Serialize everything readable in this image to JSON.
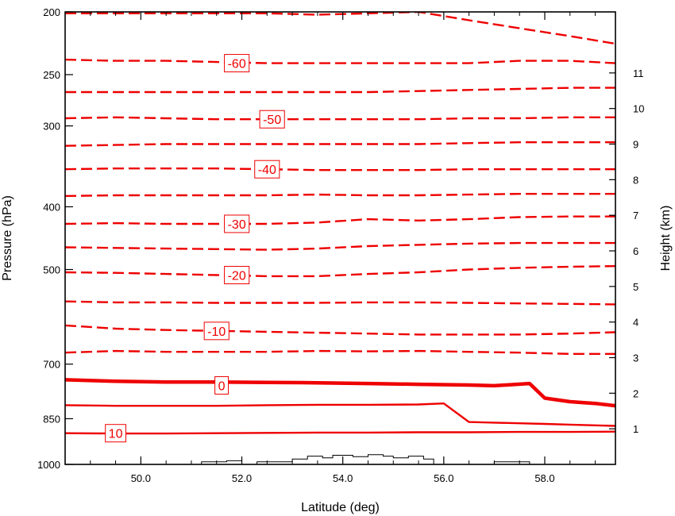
{
  "chart_data": {
    "type": "contour",
    "xlabel": "Latitude (deg)",
    "ylabel": "Pressure (hPa)",
    "y2label": "Height (km)",
    "xlim": [
      48.5,
      59.4
    ],
    "ylim_pressure_hPa": [
      1000,
      200
    ],
    "x_ticks": [
      50,
      52,
      54,
      56,
      58
    ],
    "x_tick_labels": [
      "50.0",
      "52.0",
      "54.0",
      "56.0",
      "58.0"
    ],
    "y_ticks": [
      200,
      250,
      300,
      400,
      500,
      700,
      850,
      1000
    ],
    "y_tick_labels": [
      "200",
      "250",
      "300",
      "400",
      "500",
      "700",
      "850",
      "1000"
    ],
    "y2_ticks_km": [
      1,
      2,
      3,
      4,
      5,
      6,
      7,
      8,
      9,
      10,
      11
    ],
    "y2_tick_labels": [
      "1",
      "2",
      "3",
      "4",
      "5",
      "6",
      "7",
      "8",
      "9",
      "10",
      "11"
    ],
    "contour_color": "#ee0000",
    "contour_interval": 5,
    "negative_style": "dashed",
    "zero_style": "thick solid",
    "positive_style": "solid",
    "contours": [
      {
        "level": 10,
        "label": "10",
        "label_at": [
          49.5,
          895
        ],
        "points": [
          [
            48.5,
            895
          ],
          [
            49.5,
            896
          ],
          [
            50.5,
            896
          ],
          [
            51.5,
            895
          ],
          [
            52.5,
            894
          ],
          [
            53.5,
            893
          ],
          [
            54.5,
            893
          ],
          [
            55.5,
            892
          ],
          [
            56.5,
            892
          ],
          [
            57.5,
            891
          ],
          [
            58.5,
            891
          ],
          [
            59.4,
            890
          ]
        ]
      },
      {
        "level": 5,
        "label": "",
        "label_at": null,
        "points": [
          [
            48.5,
            810
          ],
          [
            49.5,
            812
          ],
          [
            50.5,
            812
          ],
          [
            51.5,
            812
          ],
          [
            52.5,
            810
          ],
          [
            53.5,
            809
          ],
          [
            54.5,
            809
          ],
          [
            55.5,
            808
          ],
          [
            56.0,
            805
          ],
          [
            56.5,
            860
          ],
          [
            57.0,
            862
          ],
          [
            57.5,
            864
          ],
          [
            58.0,
            866
          ],
          [
            58.5,
            868
          ],
          [
            59.4,
            872
          ]
        ]
      },
      {
        "level": 0,
        "label": "0",
        "label_at": [
          51.6,
          755
        ],
        "points": [
          [
            48.5,
            740
          ],
          [
            49.5,
            744
          ],
          [
            50.5,
            746
          ],
          [
            51.5,
            746
          ],
          [
            52.5,
            747
          ],
          [
            53.5,
            748
          ],
          [
            54.5,
            750
          ],
          [
            55.5,
            752
          ],
          [
            56.5,
            754
          ],
          [
            57.0,
            756
          ],
          [
            57.7,
            750
          ],
          [
            58.0,
            790
          ],
          [
            58.5,
            800
          ],
          [
            59.0,
            805
          ],
          [
            59.4,
            812
          ]
        ]
      },
      {
        "level": -5,
        "label": "",
        "label_at": null,
        "points": [
          [
            48.5,
            672
          ],
          [
            49.5,
            668
          ],
          [
            50.5,
            670
          ],
          [
            51.5,
            670
          ],
          [
            52.5,
            670
          ],
          [
            53.5,
            668
          ],
          [
            54.5,
            669
          ],
          [
            55.5,
            668
          ],
          [
            56.5,
            670
          ],
          [
            57.5,
            672
          ],
          [
            58.5,
            675
          ],
          [
            59.4,
            675
          ]
        ]
      },
      {
        "level": -10,
        "label": "-10",
        "label_at": [
          51.5,
          622
        ],
        "points": [
          [
            48.5,
            610
          ],
          [
            49.5,
            617
          ],
          [
            50.5,
            620
          ],
          [
            51.5,
            622
          ],
          [
            52.5,
            624
          ],
          [
            53.5,
            626
          ],
          [
            54.5,
            628
          ],
          [
            55.5,
            630
          ],
          [
            56.5,
            630
          ],
          [
            57.5,
            630
          ],
          [
            58.5,
            628
          ],
          [
            59.4,
            625
          ]
        ]
      },
      {
        "level": -15,
        "label": "",
        "label_at": null,
        "points": [
          [
            48.5,
            560
          ],
          [
            49.5,
            562
          ],
          [
            50.5,
            562
          ],
          [
            51.5,
            563
          ],
          [
            52.5,
            563
          ],
          [
            53.5,
            563
          ],
          [
            54.5,
            562
          ],
          [
            55.5,
            562
          ],
          [
            56.5,
            563
          ],
          [
            57.5,
            564
          ],
          [
            58.5,
            565
          ],
          [
            59.4,
            566
          ]
        ]
      },
      {
        "level": -20,
        "label": "-20",
        "label_at": [
          51.9,
          510
        ],
        "points": [
          [
            48.5,
            505
          ],
          [
            49.5,
            506
          ],
          [
            50.5,
            508
          ],
          [
            51.5,
            510
          ],
          [
            52.5,
            512
          ],
          [
            53.5,
            512
          ],
          [
            54.5,
            508
          ],
          [
            55.5,
            505
          ],
          [
            56.5,
            500
          ],
          [
            57.5,
            497
          ],
          [
            58.5,
            495
          ],
          [
            59.4,
            494
          ]
        ]
      },
      {
        "level": -25,
        "label": "",
        "label_at": null,
        "points": [
          [
            48.5,
            462
          ],
          [
            49.5,
            463
          ],
          [
            50.5,
            464
          ],
          [
            51.5,
            465
          ],
          [
            52.5,
            466
          ],
          [
            53.5,
            464
          ],
          [
            54.5,
            460
          ],
          [
            55.5,
            458
          ],
          [
            56.5,
            456
          ],
          [
            57.5,
            455
          ],
          [
            58.5,
            455
          ],
          [
            59.4,
            455
          ]
        ]
      },
      {
        "level": -30,
        "label": "-30",
        "label_at": [
          51.9,
          425
        ],
        "points": [
          [
            48.5,
            425
          ],
          [
            49.5,
            424
          ],
          [
            50.5,
            425
          ],
          [
            51.5,
            425
          ],
          [
            52.5,
            425
          ],
          [
            53.5,
            423
          ],
          [
            54.5,
            418
          ],
          [
            55.5,
            420
          ],
          [
            56.5,
            418
          ],
          [
            57.5,
            415
          ],
          [
            58.5,
            414
          ],
          [
            59.4,
            414
          ]
        ]
      },
      {
        "level": -35,
        "label": "",
        "label_at": null,
        "points": [
          [
            48.5,
            385
          ],
          [
            49.5,
            384
          ],
          [
            50.5,
            384
          ],
          [
            51.5,
            384
          ],
          [
            52.5,
            384
          ],
          [
            53.5,
            383
          ],
          [
            54.5,
            384
          ],
          [
            55.5,
            384
          ],
          [
            56.5,
            383
          ],
          [
            57.5,
            382
          ],
          [
            58.5,
            382
          ],
          [
            59.4,
            382
          ]
        ]
      },
      {
        "level": -40,
        "label": "-40",
        "label_at": [
          52.5,
          350
        ],
        "points": [
          [
            48.5,
            350
          ],
          [
            49.5,
            349
          ],
          [
            50.5,
            349
          ],
          [
            51.5,
            349
          ],
          [
            52.5,
            350
          ],
          [
            53.5,
            351
          ],
          [
            54.5,
            351
          ],
          [
            55.5,
            351
          ],
          [
            56.5,
            350
          ],
          [
            57.5,
            350
          ],
          [
            58.5,
            350
          ],
          [
            59.4,
            350
          ]
        ]
      },
      {
        "level": -45,
        "label": "",
        "label_at": null,
        "points": [
          [
            48.5,
            322
          ],
          [
            49.5,
            321
          ],
          [
            50.5,
            320
          ],
          [
            51.5,
            320
          ],
          [
            52.5,
            320
          ],
          [
            53.5,
            320
          ],
          [
            54.5,
            320
          ],
          [
            55.5,
            320
          ],
          [
            56.5,
            319
          ],
          [
            57.5,
            318
          ],
          [
            58.5,
            318
          ],
          [
            59.4,
            318
          ]
        ]
      },
      {
        "level": -50,
        "label": "-50",
        "label_at": [
          52.6,
          293
        ],
        "points": [
          [
            48.5,
            292
          ],
          [
            49.5,
            291
          ],
          [
            50.5,
            292
          ],
          [
            51.5,
            293
          ],
          [
            52.5,
            293
          ],
          [
            53.5,
            293
          ],
          [
            54.5,
            293
          ],
          [
            55.5,
            293
          ],
          [
            56.5,
            292
          ],
          [
            57.5,
            292
          ],
          [
            58.5,
            291
          ],
          [
            59.4,
            291
          ]
        ]
      },
      {
        "level": -55,
        "label": "",
        "label_at": null,
        "points": [
          [
            48.5,
            266
          ],
          [
            49.5,
            266
          ],
          [
            50.5,
            266
          ],
          [
            51.5,
            266
          ],
          [
            52.5,
            266
          ],
          [
            53.5,
            266
          ],
          [
            54.5,
            266
          ],
          [
            55.5,
            265
          ],
          [
            56.5,
            264
          ],
          [
            57.5,
            263
          ],
          [
            58.5,
            262
          ],
          [
            59.4,
            262
          ]
        ]
      },
      {
        "level": -60,
        "label": "-60",
        "label_at": [
          51.9,
          240
        ],
        "points": [
          [
            48.5,
            237
          ],
          [
            49.5,
            238
          ],
          [
            50.5,
            238
          ],
          [
            51.5,
            239
          ],
          [
            52.5,
            240
          ],
          [
            53.5,
            240
          ],
          [
            54.5,
            240
          ],
          [
            55.5,
            240
          ],
          [
            56.5,
            240
          ],
          [
            57.5,
            238
          ],
          [
            58.5,
            238
          ],
          [
            59.4,
            240
          ]
        ]
      },
      {
        "level": -65,
        "label": "",
        "label_at": null,
        "points": [
          [
            48.5,
            201
          ],
          [
            49.5,
            201
          ],
          [
            50.5,
            201
          ],
          [
            51.5,
            201
          ],
          [
            52.5,
            201
          ],
          [
            53.5,
            202
          ],
          [
            54.5,
            201
          ],
          [
            55.5,
            200
          ],
          [
            56.5,
            206
          ],
          [
            57.5,
            212
          ],
          [
            58.5,
            218
          ],
          [
            59.4,
            224
          ]
        ]
      }
    ],
    "terrain": {
      "color": "#000000",
      "segments": [
        [
          [
            51.2,
            1000
          ],
          [
            51.2,
            991
          ],
          [
            51.7,
            991
          ],
          [
            51.7,
            987
          ],
          [
            52.0,
            987
          ],
          [
            52.0,
            1000
          ]
        ],
        [
          [
            52.3,
            1000
          ],
          [
            52.3,
            991
          ],
          [
            53.0,
            991
          ],
          [
            53.0,
            981
          ],
          [
            53.3,
            981
          ],
          [
            53.3,
            971
          ],
          [
            53.6,
            971
          ],
          [
            53.6,
            977
          ],
          [
            53.8,
            977
          ],
          [
            53.8,
            968
          ],
          [
            54.2,
            968
          ],
          [
            54.2,
            973
          ],
          [
            54.5,
            973
          ],
          [
            54.5,
            966
          ],
          [
            54.8,
            966
          ],
          [
            54.8,
            971
          ],
          [
            55.0,
            971
          ],
          [
            55.0,
            977
          ],
          [
            55.3,
            977
          ],
          [
            55.3,
            971
          ],
          [
            55.6,
            971
          ],
          [
            55.6,
            981
          ],
          [
            55.8,
            981
          ],
          [
            55.8,
            1000
          ]
        ],
        [
          [
            57.0,
            1000
          ],
          [
            57.0,
            991
          ],
          [
            57.7,
            991
          ],
          [
            57.7,
            1000
          ]
        ]
      ]
    }
  }
}
